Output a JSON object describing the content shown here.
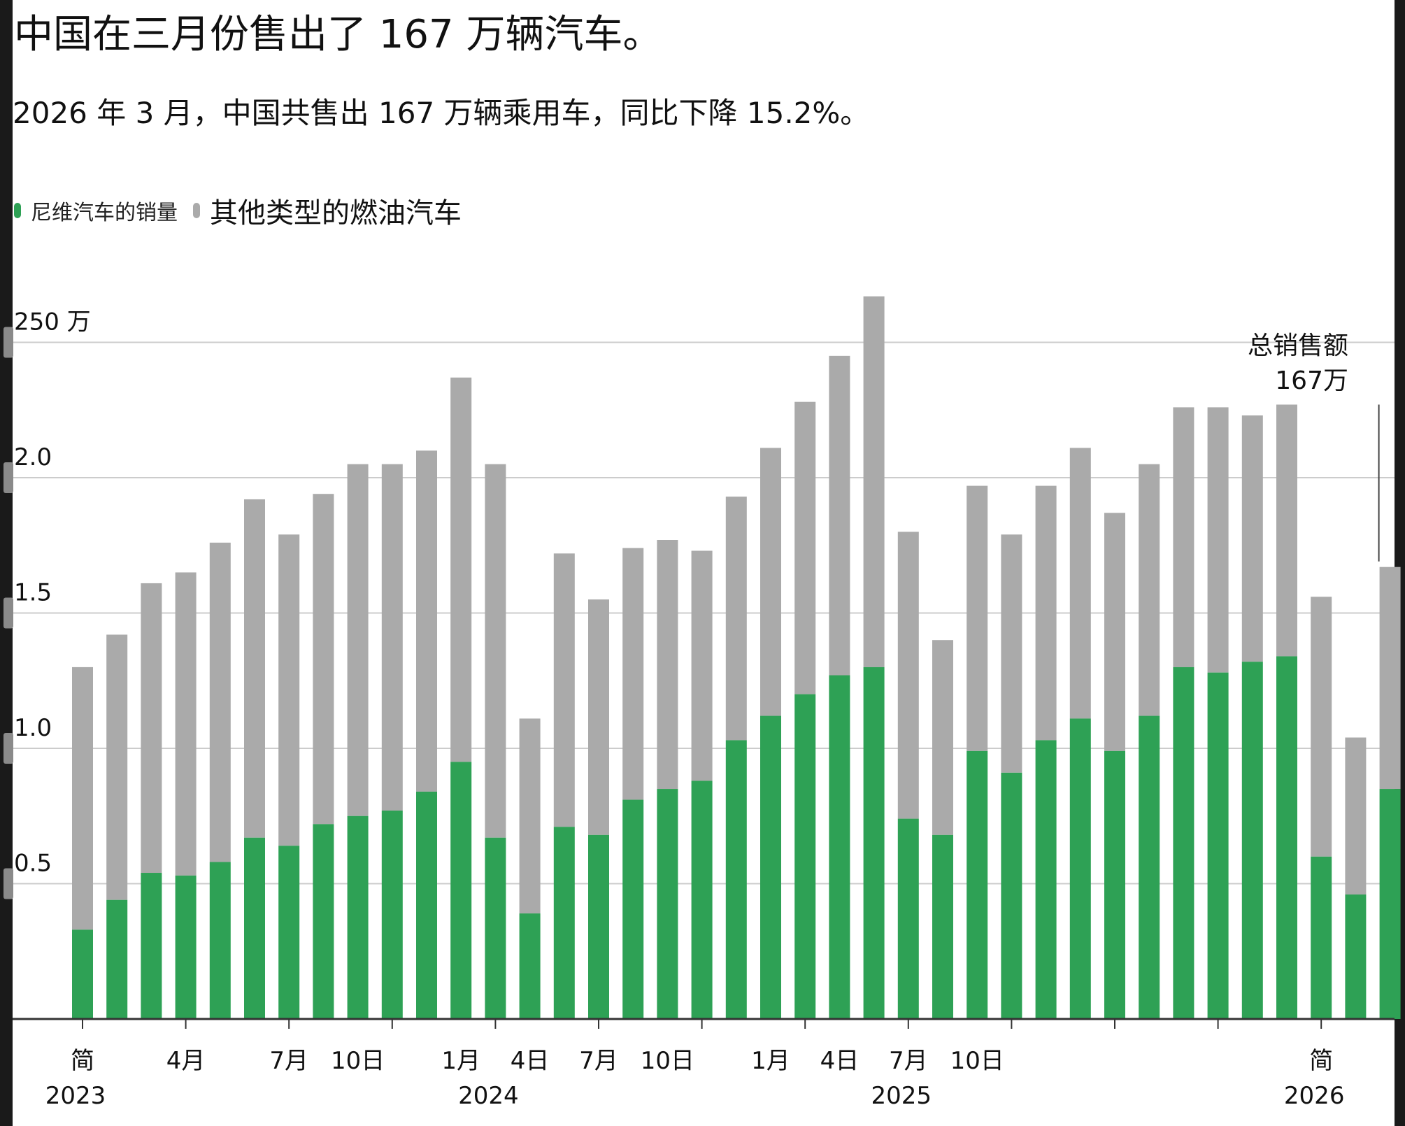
{
  "title": "中国在三月份售出了 167 万辆汽车。",
  "subtitle": "2026 年 3 月，中国共售出 167 万辆乘用车，同比下降 15.2%。",
  "legend": {
    "nev_label": "尼维汽车的销量",
    "ice_label": "其他类型的燃油汽车"
  },
  "colors": {
    "nev": "#2ea155",
    "ice": "#aaaaaa",
    "grid": "#cccccc",
    "axis": "#333333"
  },
  "annotation": {
    "line1": "总销售额",
    "line2": "167万"
  },
  "chart_data": {
    "type": "bar",
    "stacked": true,
    "ylim": [
      0,
      2.7
    ],
    "y_unit": "百万辆",
    "grid": true,
    "legend_position": "top-left",
    "y_ticks": [
      {
        "value": 0.5,
        "label": "0.5"
      },
      {
        "value": 1.0,
        "label": "1.0"
      },
      {
        "value": 1.5,
        "label": "1.5"
      },
      {
        "value": 2.0,
        "label": "2.0"
      },
      {
        "value": 2.5,
        "label": "250 万"
      }
    ],
    "x_month_labels": [
      {
        "index": 0,
        "label": "简"
      },
      {
        "index": 3,
        "label": "4月"
      },
      {
        "index": 6,
        "label": "7月"
      },
      {
        "index": 8,
        "label": "10日"
      },
      {
        "index": 11,
        "label": "1月"
      },
      {
        "index": 13,
        "label": "4日"
      },
      {
        "index": 15,
        "label": "7月"
      },
      {
        "index": 17,
        "label": "10日"
      },
      {
        "index": 20,
        "label": "1月"
      },
      {
        "index": 22,
        "label": "4日"
      },
      {
        "index": 24,
        "label": "7月"
      },
      {
        "index": 26,
        "label": "10日"
      },
      {
        "index": 36,
        "label": "简"
      }
    ],
    "x_year_labels": [
      {
        "index": 0,
        "label": "2023"
      },
      {
        "index": 12,
        "label": "2024"
      },
      {
        "index": 24,
        "label": "2025"
      },
      {
        "index": 36,
        "label": "2026"
      }
    ],
    "series": [
      {
        "name": "尼维汽车的销量",
        "values": [
          0.33,
          0.44,
          0.54,
          0.53,
          0.58,
          0.67,
          0.64,
          0.72,
          0.75,
          0.77,
          0.84,
          0.95,
          0.67,
          0.39,
          0.71,
          0.68,
          0.81,
          0.85,
          0.88,
          1.03,
          1.12,
          1.2,
          1.27,
          1.3,
          0.74,
          0.68,
          0.99,
          0.91,
          1.03,
          1.11,
          0.99,
          1.12,
          1.3,
          1.28,
          1.32,
          1.34,
          0.6,
          0.46,
          0.85
        ]
      },
      {
        "name": "其他类型的燃油汽车",
        "values": [
          0.97,
          0.98,
          1.07,
          1.12,
          1.18,
          1.25,
          1.15,
          1.22,
          1.3,
          1.28,
          1.26,
          1.42,
          1.38,
          0.72,
          1.01,
          0.87,
          0.93,
          0.92,
          0.85,
          0.9,
          0.99,
          1.08,
          1.18,
          1.37,
          1.06,
          0.72,
          0.98,
          0.88,
          0.94,
          1.0,
          0.88,
          0.93,
          0.96,
          0.98,
          0.91,
          0.93,
          0.96,
          0.58,
          0.82
        ]
      }
    ]
  }
}
